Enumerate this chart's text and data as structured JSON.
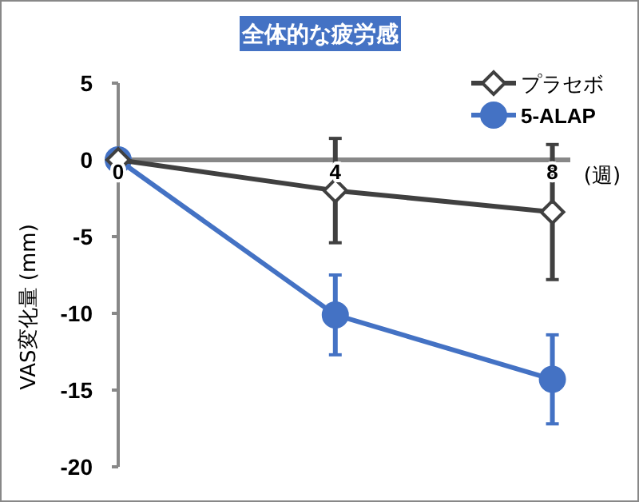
{
  "chart_data": {
    "type": "line",
    "title": "全体的な疲労感",
    "xlabel": "(週)",
    "ylabel": "VAS変化量 (mm)",
    "x": [
      0,
      4,
      8
    ],
    "xlim": [
      0,
      8.33
    ],
    "xticks": [
      0,
      4,
      8
    ],
    "ylim": [
      -20,
      5
    ],
    "yticks": [
      5,
      0,
      -5,
      -10,
      -15,
      -20
    ],
    "series": [
      {
        "name": "プラセボ",
        "color": "#404040",
        "values": [
          0,
          -2.0,
          -3.4
        ],
        "errors": [
          null,
          3.4,
          4.4
        ],
        "marker": "diamond"
      },
      {
        "name": "5-ALAP",
        "color": "#4472c4",
        "values": [
          0,
          -10.1,
          -14.3
        ],
        "errors": [
          null,
          2.6,
          2.9
        ],
        "marker": "circle"
      }
    ],
    "legend": "top right",
    "grid": false
  }
}
